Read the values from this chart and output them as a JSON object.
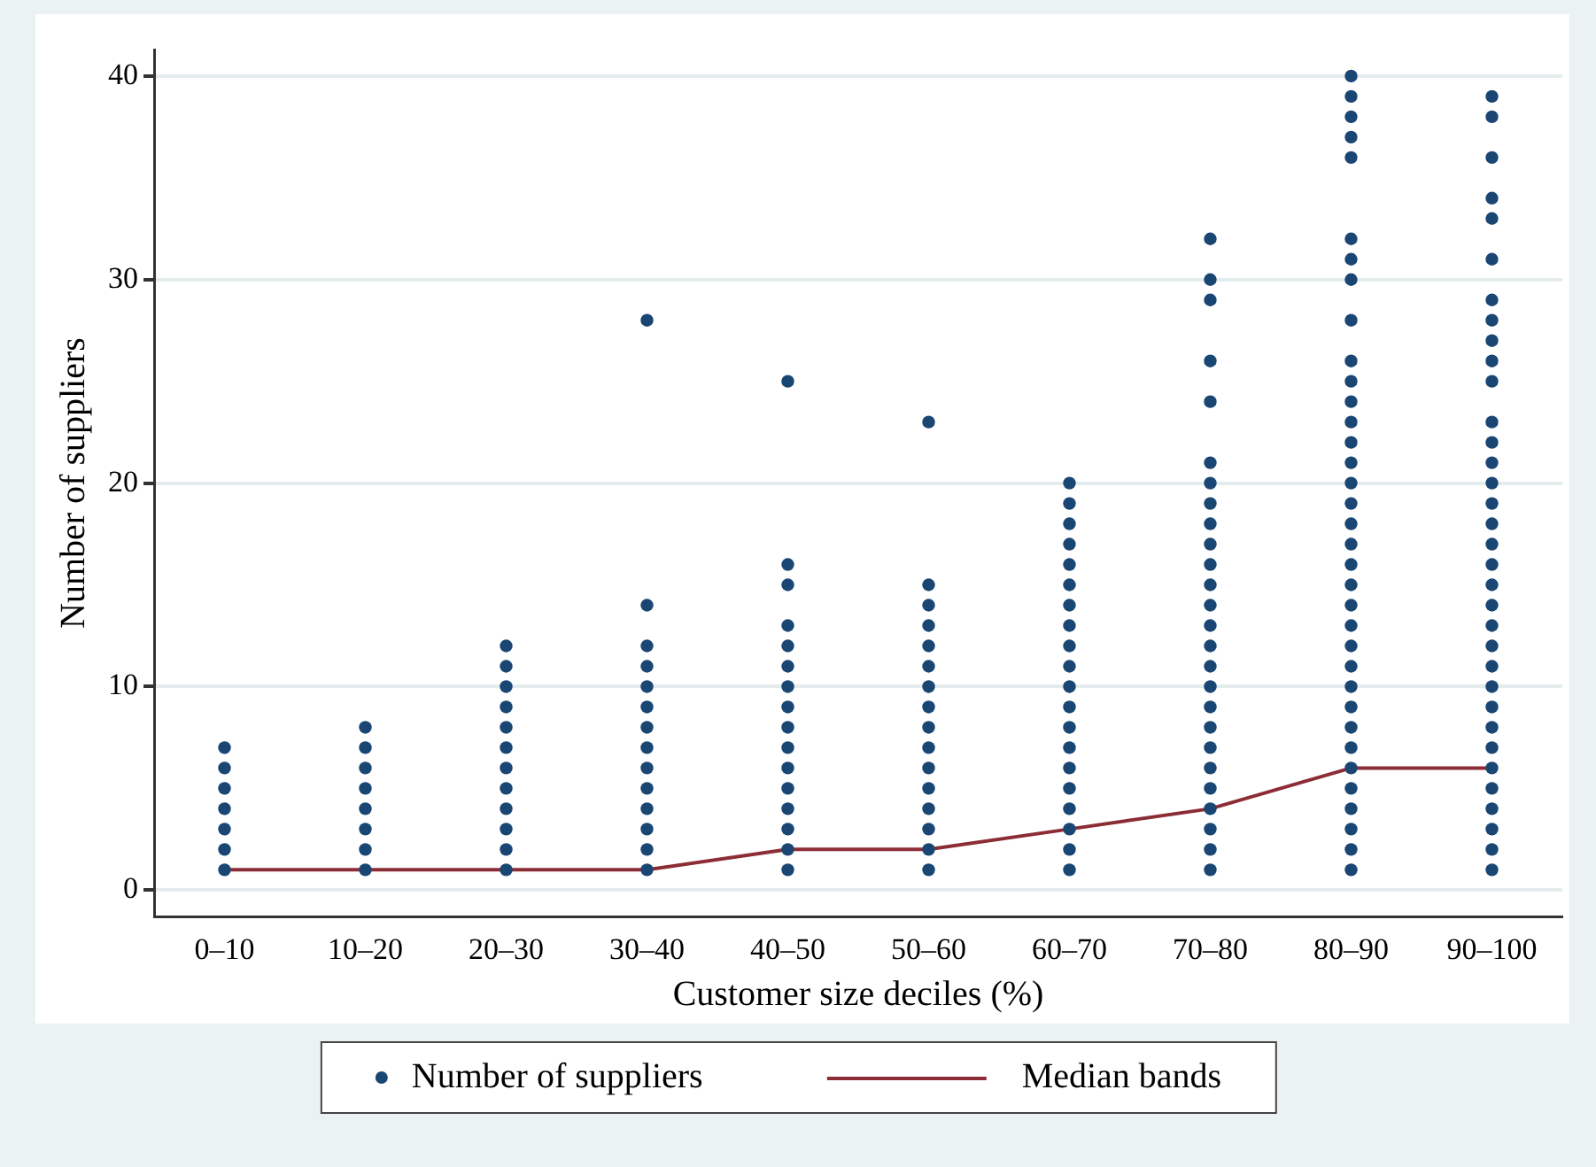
{
  "chart_data": {
    "type": "scatter",
    "xlabel": "Customer size deciles (%)",
    "ylabel": "Number of suppliers",
    "categories": [
      "0–10",
      "10–20",
      "20–30",
      "30–40",
      "40–50",
      "50–60",
      "60–70",
      "70–80",
      "80–90",
      "90–100"
    ],
    "ylim": [
      -1.3,
      41.3
    ],
    "yticks": [
      0,
      10,
      20,
      30,
      40
    ],
    "grid": "y",
    "legend": "bottom",
    "series": [
      {
        "name": "Number of suppliers",
        "marker": "circle",
        "color": "#1a4674",
        "x": [
          "0–10",
          "0–10",
          "0–10",
          "0–10",
          "0–10",
          "0–10",
          "0–10",
          "10–20",
          "10–20",
          "10–20",
          "10–20",
          "10–20",
          "10–20",
          "10–20",
          "10–20",
          "20–30",
          "20–30",
          "20–30",
          "20–30",
          "20–30",
          "20–30",
          "20–30",
          "20–30",
          "20–30",
          "20–30",
          "20–30",
          "20–30",
          "30–40",
          "30–40",
          "30–40",
          "30–40",
          "30–40",
          "30–40",
          "30–40",
          "30–40",
          "30–40",
          "30–40",
          "30–40",
          "30–40",
          "30–40",
          "30–40",
          "40–50",
          "40–50",
          "40–50",
          "40–50",
          "40–50",
          "40–50",
          "40–50",
          "40–50",
          "40–50",
          "40–50",
          "40–50",
          "40–50",
          "40–50",
          "40–50",
          "40–50",
          "40–50",
          "50–60",
          "50–60",
          "50–60",
          "50–60",
          "50–60",
          "50–60",
          "50–60",
          "50–60",
          "50–60",
          "50–60",
          "50–60",
          "50–60",
          "50–60",
          "50–60",
          "50–60",
          "50–60",
          "60–70",
          "60–70",
          "60–70",
          "60–70",
          "60–70",
          "60–70",
          "60–70",
          "60–70",
          "60–70",
          "60–70",
          "60–70",
          "60–70",
          "60–70",
          "60–70",
          "60–70",
          "60–70",
          "60–70",
          "60–70",
          "60–70",
          "60–70",
          "70–80",
          "70–80",
          "70–80",
          "70–80",
          "70–80",
          "70–80",
          "70–80",
          "70–80",
          "70–80",
          "70–80",
          "70–80",
          "70–80",
          "70–80",
          "70–80",
          "70–80",
          "70–80",
          "70–80",
          "70–80",
          "70–80",
          "70–80",
          "70–80",
          "70–80",
          "70–80",
          "70–80",
          "70–80",
          "70–80",
          "80–90",
          "80–90",
          "80–90",
          "80–90",
          "80–90",
          "80–90",
          "80–90",
          "80–90",
          "80–90",
          "80–90",
          "80–90",
          "80–90",
          "80–90",
          "80–90",
          "80–90",
          "80–90",
          "80–90",
          "80–90",
          "80–90",
          "80–90",
          "80–90",
          "80–90",
          "80–90",
          "80–90",
          "80–90",
          "80–90",
          "80–90",
          "80–90",
          "80–90",
          "80–90",
          "80–90",
          "80–90",
          "80–90",
          "80–90",
          "80–90",
          "90–100",
          "90–100",
          "90–100",
          "90–100",
          "90–100",
          "90–100",
          "90–100",
          "90–100",
          "90–100",
          "90–100",
          "90–100",
          "90–100",
          "90–100",
          "90–100",
          "90–100",
          "90–100",
          "90–100",
          "90–100",
          "90–100",
          "90–100",
          "90–100",
          "90–100",
          "90–100",
          "90–100",
          "90–100",
          "90–100",
          "90–100",
          "90–100",
          "90–100",
          "90–100",
          "90–100",
          "90–100",
          "90–100",
          "90–100"
        ],
        "values": [
          1,
          2,
          3,
          4,
          5,
          6,
          7,
          1,
          2,
          3,
          4,
          5,
          6,
          7,
          8,
          1,
          2,
          3,
          4,
          5,
          6,
          7,
          8,
          9,
          10,
          11,
          12,
          1,
          2,
          3,
          4,
          5,
          6,
          7,
          8,
          9,
          10,
          11,
          12,
          14,
          28,
          1,
          2,
          3,
          4,
          5,
          6,
          7,
          8,
          9,
          10,
          11,
          12,
          13,
          15,
          16,
          25,
          1,
          2,
          3,
          4,
          5,
          6,
          7,
          8,
          9,
          10,
          11,
          12,
          13,
          14,
          15,
          23,
          1,
          2,
          3,
          4,
          5,
          6,
          7,
          8,
          9,
          10,
          11,
          12,
          13,
          14,
          15,
          16,
          17,
          18,
          19,
          20,
          1,
          2,
          3,
          4,
          5,
          6,
          7,
          8,
          9,
          10,
          11,
          12,
          13,
          14,
          15,
          16,
          17,
          18,
          19,
          20,
          21,
          24,
          26,
          29,
          30,
          32,
          1,
          2,
          3,
          4,
          5,
          6,
          7,
          8,
          9,
          10,
          11,
          12,
          13,
          14,
          15,
          16,
          17,
          18,
          19,
          20,
          21,
          22,
          23,
          24,
          25,
          26,
          28,
          30,
          31,
          32,
          36,
          37,
          38,
          39,
          40,
          1,
          2,
          3,
          4,
          5,
          6,
          7,
          8,
          9,
          10,
          11,
          12,
          13,
          14,
          15,
          16,
          17,
          18,
          19,
          20,
          21,
          22,
          23,
          25,
          26,
          27,
          28,
          29,
          31,
          33,
          34,
          36,
          38,
          39
        ]
      },
      {
        "name": "Median bands",
        "type": "line",
        "marker": "none",
        "color": "#8c2d36",
        "values": [
          1,
          1,
          1,
          1,
          2,
          2,
          3,
          4,
          6,
          6
        ]
      }
    ]
  }
}
